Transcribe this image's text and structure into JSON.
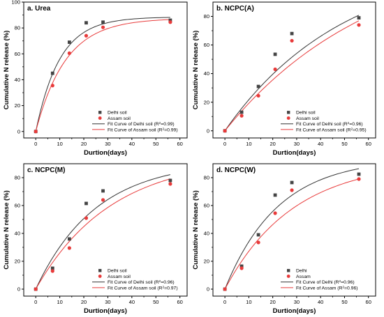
{
  "chart_data": [
    {
      "type": "scatter",
      "title": "a. Urea",
      "xlabel": "Durtion(days)",
      "ylabel": "Cumulative N release (%)",
      "xlim": [
        -5,
        63
      ],
      "ylim": [
        -5,
        100
      ],
      "xticks": [
        0,
        10,
        20,
        30,
        40,
        50,
        60
      ],
      "yticks": [
        0,
        20,
        40,
        60,
        80,
        100
      ],
      "series": [
        {
          "name": "Delhi soil",
          "marker": "square",
          "color": "#444444",
          "x": [
            0,
            7,
            14,
            21,
            28,
            56
          ],
          "y": [
            0,
            45,
            69,
            84,
            84.5,
            86
          ]
        },
        {
          "name": "Assam soil",
          "marker": "circle",
          "color": "#e83a3a",
          "x": [
            0,
            7,
            14,
            21,
            28,
            56
          ],
          "y": [
            0,
            35.5,
            60.5,
            74,
            80.5,
            84.5
          ]
        }
      ],
      "fits": [
        {
          "name": "Fit Curve of Delhi soil",
          "r2": "0.99",
          "color": "#333333",
          "a": 88.5,
          "k": 0.1
        },
        {
          "name": "Fit Curve of Assam soil",
          "r2": "0.99",
          "color": "#e83a3a",
          "a": 87.5,
          "k": 0.08
        }
      ]
    },
    {
      "type": "scatter",
      "title": "b. NCPC(A)",
      "xlabel": "Durtion(days)",
      "ylabel": "Cumulative N release (%)",
      "xlim": [
        -5,
        63
      ],
      "ylim": [
        -5,
        90
      ],
      "xticks": [
        0,
        10,
        20,
        30,
        40,
        50,
        60
      ],
      "yticks": [
        0,
        20,
        40,
        60,
        80
      ],
      "series": [
        {
          "name": "Delhi soil",
          "marker": "square",
          "color": "#444444",
          "x": [
            0,
            7,
            14,
            21,
            28,
            56
          ],
          "y": [
            0,
            13,
            31,
            53.5,
            68,
            79
          ]
        },
        {
          "name": "Assam soil",
          "marker": "circle",
          "color": "#e83a3a",
          "x": [
            0,
            7,
            14,
            21,
            28,
            56
          ],
          "y": [
            0,
            10.5,
            24.5,
            43,
            63,
            74
          ]
        }
      ],
      "fits": [
        {
          "name": "Fit Curve of Delhi soil",
          "r2": "0.96",
          "color": "#333333",
          "a": 120,
          "k": 0.02
        },
        {
          "name": "Fit Curve of Assam soil",
          "r2": "0.95",
          "color": "#e83a3a",
          "a": 130,
          "k": 0.016
        }
      ]
    },
    {
      "type": "scatter",
      "title": "c. NCPC(M)",
      "xlabel": "Durtion(days)",
      "ylabel": "Cumulative N release (%)",
      "xlim": [
        -5,
        63
      ],
      "ylim": [
        -5,
        90
      ],
      "xticks": [
        0,
        10,
        20,
        30,
        40,
        50,
        60
      ],
      "yticks": [
        0,
        20,
        40,
        60,
        80
      ],
      "series": [
        {
          "name": "Delhi soil",
          "marker": "square",
          "color": "#444444",
          "x": [
            0,
            7,
            14,
            21,
            28,
            56
          ],
          "y": [
            0,
            15,
            36,
            61.5,
            70.5,
            78
          ]
        },
        {
          "name": "Assam soil",
          "marker": "circle",
          "color": "#e83a3a",
          "x": [
            0,
            7,
            14,
            21,
            28,
            56
          ],
          "y": [
            0,
            13,
            29.5,
            51,
            64,
            75.5
          ]
        }
      ],
      "fits": [
        {
          "name": "Fit Curve of Delhi soil",
          "r2": "0.96",
          "color": "#333333",
          "a": 92,
          "k": 0.04
        },
        {
          "name": "Fit Curve of Assam soil",
          "r2": "0.97",
          "color": "#e83a3a",
          "a": 95,
          "k": 0.032
        }
      ]
    },
    {
      "type": "scatter",
      "title": "d. NCPC(W)",
      "xlabel": "Durtion(days)",
      "ylabel": "Cumulative N release (%)",
      "xlim": [
        -5,
        63
      ],
      "ylim": [
        -5,
        90
      ],
      "xticks": [
        0,
        10,
        20,
        30,
        40,
        50,
        60
      ],
      "yticks": [
        0,
        20,
        40,
        60,
        80
      ],
      "series": [
        {
          "name": "Delhi",
          "marker": "square",
          "color": "#444444",
          "x": [
            0,
            7,
            14,
            21,
            28,
            56
          ],
          "y": [
            0,
            16.5,
            39,
            67.5,
            76.5,
            82.5
          ]
        },
        {
          "name": "Assam",
          "marker": "circle",
          "color": "#e83a3a",
          "x": [
            0,
            7,
            14,
            21,
            28,
            56
          ],
          "y": [
            0,
            15,
            33.5,
            54.5,
            71,
            79
          ]
        }
      ],
      "fits": [
        {
          "name": "Fit Curve of Delhi",
          "r2": "0.96",
          "color": "#333333",
          "a": 94,
          "k": 0.045
        },
        {
          "name": "Fit Curve of Assam",
          "r2": "0.96",
          "color": "#e83a3a",
          "a": 92,
          "k": 0.035
        }
      ]
    }
  ]
}
